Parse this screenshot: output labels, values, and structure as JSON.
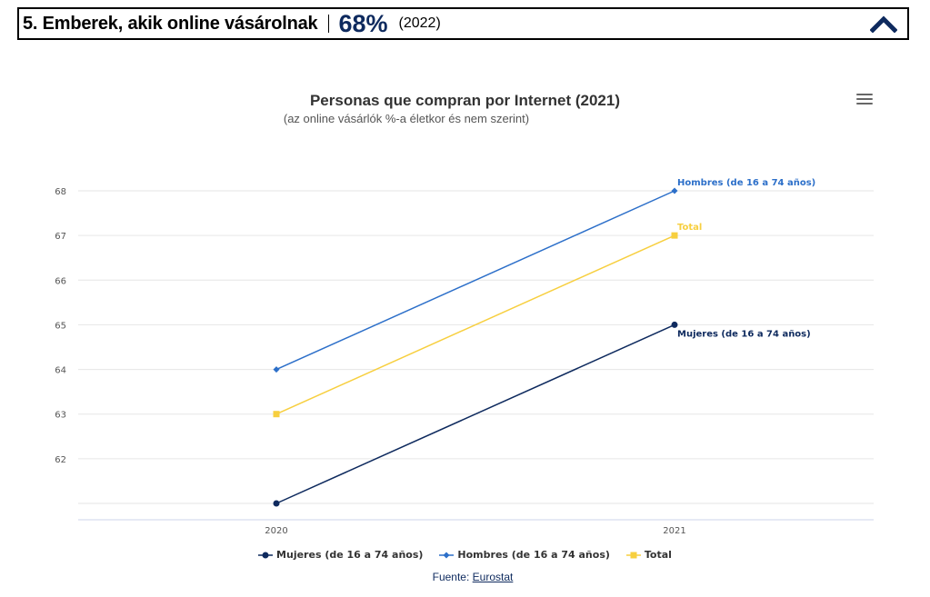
{
  "header": {
    "title": "5. Emberek, akik online vásárolnak",
    "value": "68%",
    "year": "(2022)"
  },
  "chart_meta": {
    "title": "Personas que compran por Internet (2021)",
    "subtitle": "(az online vásárlók %-a életkor és nem szerint)",
    "source_prefix": "Fuente:",
    "source_link": "Eurostat"
  },
  "colors": {
    "mujeres": "#0e2a5e",
    "hombres": "#2c6fc9",
    "total": "#f7cf3f",
    "grid": "#e6e6e6"
  },
  "icons": {
    "collapse": "chevron-up-icon",
    "menu": "hamburger-menu-icon"
  },
  "chart_data": {
    "type": "line",
    "title": "Personas que compran por Internet (2021)",
    "subtitle": "(az online vásárlók %-a életkor és nem szerint)",
    "categories": [
      "2020",
      "2021"
    ],
    "yticks": [
      "62",
      "63",
      "64",
      "65",
      "66",
      "67",
      "68"
    ],
    "ylim": [
      61,
      68
    ],
    "grid": true,
    "legend_position": "bottom-center",
    "series": [
      {
        "name": "Mujeres (de 16 a 74 años)",
        "values": [
          61,
          65
        ],
        "marker": "circle",
        "color": "#0e2a5e"
      },
      {
        "name": "Hombres (de 16 a 74 años)",
        "values": [
          64,
          68
        ],
        "marker": "diamond",
        "color": "#2c6fc9"
      },
      {
        "name": "Total",
        "values": [
          63,
          67
        ],
        "marker": "square",
        "color": "#f7cf3f"
      }
    ]
  }
}
